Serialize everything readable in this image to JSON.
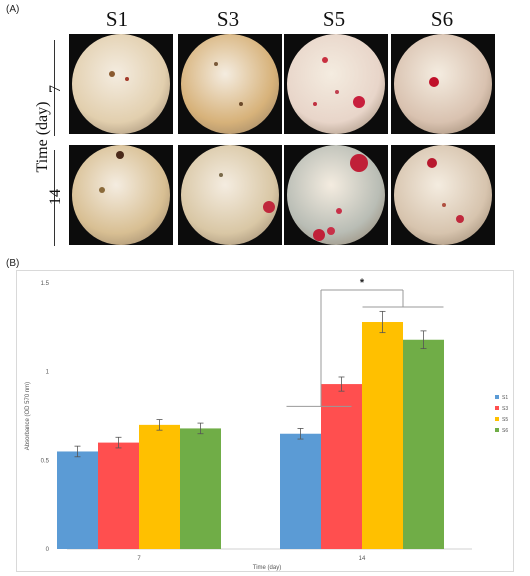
{
  "panel_a": {
    "label": "(A)",
    "columns": [
      "S1",
      "S3",
      "S5",
      "S6"
    ],
    "rows": [
      "7",
      "14"
    ],
    "row_axis_label": "Time (day)",
    "photos": [
      {
        "name": "photo-s1-day7",
        "tone": "#e2cfae",
        "spots": [
          {
            "x": 55,
            "y": 45,
            "r": 2,
            "c": "#a33a2a"
          },
          {
            "x": 40,
            "y": 40,
            "r": 3,
            "c": "#8a5a30"
          }
        ]
      },
      {
        "name": "photo-s3-day7",
        "tone": "#d7b27a",
        "spots": [
          {
            "x": 60,
            "y": 70,
            "r": 2,
            "c": "#6b4a2a"
          },
          {
            "x": 35,
            "y": 30,
            "r": 2,
            "c": "#7a5a3a"
          }
        ]
      },
      {
        "name": "photo-s5-day7",
        "tone": "#e8d5c9",
        "spots": [
          {
            "x": 72,
            "y": 68,
            "r": 6,
            "c": "#c81e3c"
          },
          {
            "x": 38,
            "y": 26,
            "r": 3,
            "c": "#c83040"
          },
          {
            "x": 28,
            "y": 70,
            "r": 2,
            "c": "#c03040"
          },
          {
            "x": 50,
            "y": 58,
            "r": 2,
            "c": "#c04050"
          }
        ]
      },
      {
        "name": "photo-s6-day7",
        "tone": "#d9c2b0",
        "spots": [
          {
            "x": 40,
            "y": 48,
            "r": 5,
            "c": "#c0102a"
          }
        ]
      },
      {
        "name": "photo-s1-day14",
        "tone": "#d8bf93",
        "spots": [
          {
            "x": 48,
            "y": 10,
            "r": 4,
            "c": "#4a2a1a"
          },
          {
            "x": 30,
            "y": 45,
            "r": 3,
            "c": "#8a6a3a"
          }
        ]
      },
      {
        "name": "photo-s3-day14",
        "tone": "#d9c7a5",
        "spots": [
          {
            "x": 88,
            "y": 62,
            "r": 6,
            "c": "#c0283c"
          },
          {
            "x": 40,
            "y": 30,
            "r": 2,
            "c": "#7a6a4a"
          }
        ]
      },
      {
        "name": "photo-s5-day14",
        "tone": "#b9bdb5",
        "spots": [
          {
            "x": 72,
            "y": 18,
            "r": 9,
            "c": "#c02038"
          },
          {
            "x": 32,
            "y": 90,
            "r": 6,
            "c": "#c02038"
          },
          {
            "x": 44,
            "y": 86,
            "r": 4,
            "c": "#c83048"
          },
          {
            "x": 52,
            "y": 66,
            "r": 3,
            "c": "#c83048"
          }
        ]
      },
      {
        "name": "photo-s6-day14",
        "tone": "#d7c4ae",
        "spots": [
          {
            "x": 38,
            "y": 18,
            "r": 5,
            "c": "#b8182e"
          },
          {
            "x": 66,
            "y": 74,
            "r": 4,
            "c": "#c0283c"
          },
          {
            "x": 50,
            "y": 60,
            "r": 2,
            "c": "#b05040"
          }
        ]
      }
    ]
  },
  "panel_b": {
    "label": "(B)"
  },
  "chart_data": {
    "type": "bar",
    "categories": [
      "7",
      "14"
    ],
    "xlabel": "Time (day)",
    "ylabel": "Absorbance (OD 570 nm)",
    "ylim": [
      0,
      1.5
    ],
    "yticks": [
      "0",
      "0.5",
      "1",
      "1.5"
    ],
    "series": [
      {
        "name": "S1",
        "color": "#5b9bd5",
        "values": [
          0.55,
          0.65
        ],
        "errors": [
          0.03,
          0.03
        ]
      },
      {
        "name": "S3",
        "color": "#ff4f4f",
        "values": [
          0.6,
          0.93
        ],
        "errors": [
          0.03,
          0.04
        ]
      },
      {
        "name": "S5",
        "color": "#ffc000",
        "values": [
          0.7,
          1.28
        ],
        "errors": [
          0.03,
          0.06
        ]
      },
      {
        "name": "S6",
        "color": "#70ad47",
        "values": [
          0.68,
          1.18
        ],
        "errors": [
          0.03,
          0.05
        ]
      }
    ],
    "significance": "*",
    "legend_position": "right"
  }
}
